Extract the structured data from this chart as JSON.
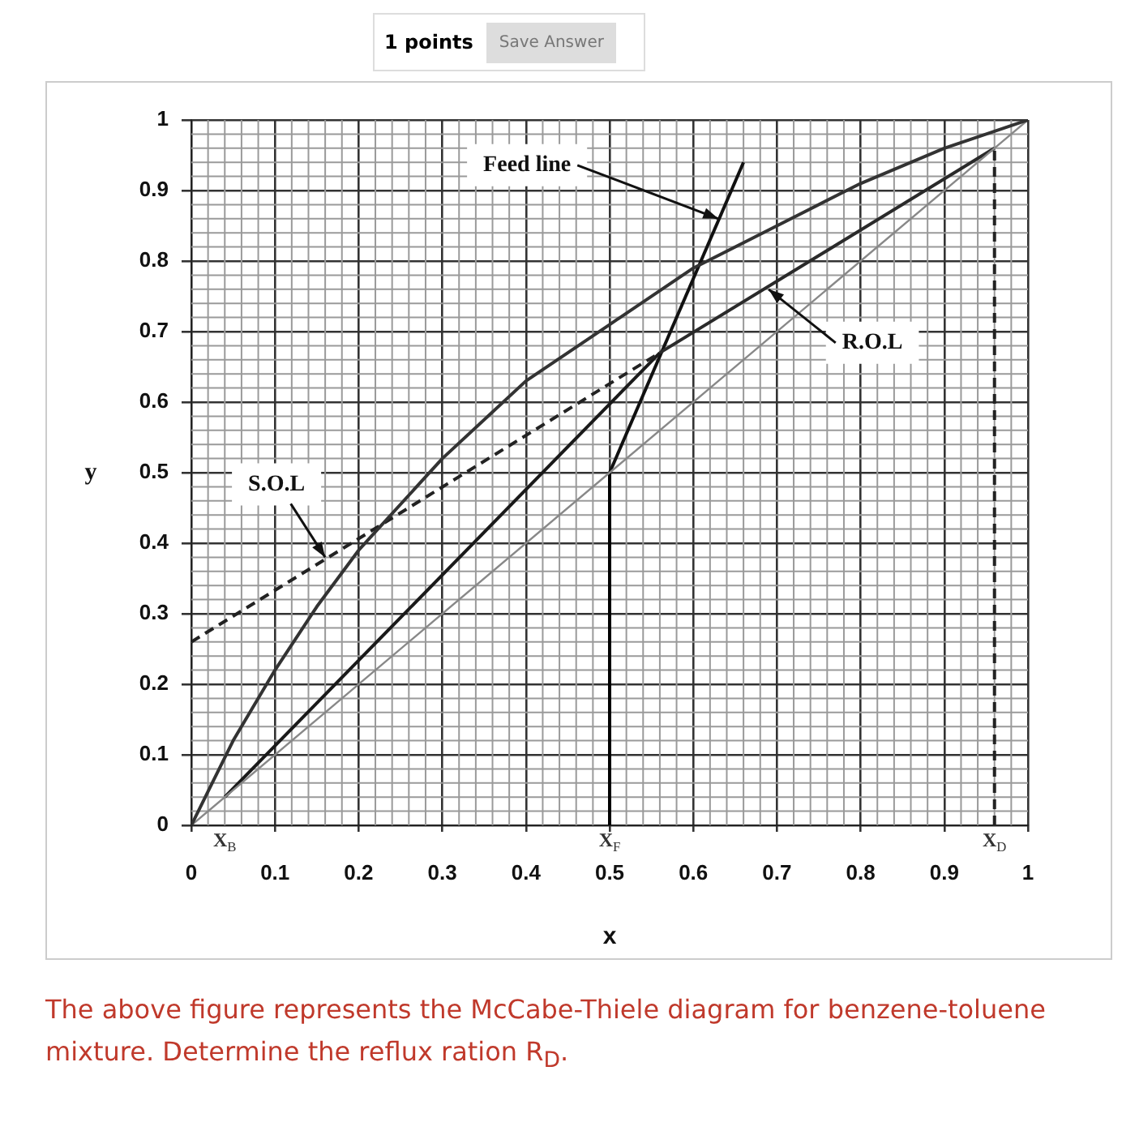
{
  "chart_data": {
    "type": "line",
    "xlabel": "x",
    "ylabel": "y",
    "xlim": [
      0,
      1
    ],
    "ylim": [
      0,
      1
    ],
    "xticks": [
      0,
      0.1,
      0.2,
      0.3,
      0.4,
      0.5,
      0.6,
      0.7,
      0.8,
      0.9,
      1
    ],
    "yticks": [
      0,
      0.1,
      0.2,
      0.3,
      0.4,
      0.5,
      0.6,
      0.7,
      0.8,
      0.9,
      1
    ],
    "grid": true,
    "legend": false,
    "marker": "none",
    "series": [
      {
        "color": "#333333",
        "x": [
          0,
          0.05,
          0.1,
          0.15,
          0.2,
          0.3,
          0.4,
          0.5,
          0.6,
          0.7,
          0.8,
          0.9,
          1
        ],
        "values": [
          0,
          0.12,
          0.22,
          0.31,
          0.39,
          0.52,
          0.63,
          0.71,
          0.79,
          0.85,
          0.91,
          0.96,
          1
        ]
      },
      {
        "color": "#888888",
        "x": [
          0,
          1
        ],
        "values": [
          0,
          1
        ]
      },
      {
        "color": "#2a2a2a",
        "x": [
          0.56,
          0.96
        ],
        "values": [
          0.67,
          0.96
        ]
      },
      {
        "color": "#222222",
        "x": [
          0,
          0.56
        ],
        "values": [
          0.26,
          0.67
        ],
        "line_style": "dashed"
      },
      {
        "color": "#1a1a1a",
        "x": [
          0.04,
          0.56
        ],
        "values": [
          0.04,
          0.67
        ]
      },
      {
        "color": "#111111",
        "x": [
          0.5,
          0.66
        ],
        "values": [
          0.5,
          0.94
        ]
      },
      {
        "color": "#000000",
        "x": [
          0.5,
          0.5
        ],
        "values": [
          0,
          0.5
        ]
      },
      {
        "color": "#222222",
        "x": [
          0.96,
          0.96
        ],
        "values": [
          0,
          0.96
        ],
        "line_style": "dashed"
      }
    ],
    "annotations": [
      "1 points",
      "Save Answer",
      {
        "text": "Feed line",
        "x": 0.63,
        "y": 0.86
      },
      {
        "text": "S.O.L",
        "x": 0.16,
        "y": 0.38
      },
      {
        "text": "R.O.L",
        "x": 0.69,
        "y": 0.76
      },
      {
        "text": "X$_{B}$",
        "x": 0.04,
        "y": 0.04
      },
      {
        "text": "X$_{F}$",
        "x": 0.5,
        "y": 0
      },
      {
        "text": "X$_{D}$",
        "x": 0.96,
        "y": 0
      },
      "The above figure represents the McCabe-Thiele diagram for benzene-toluene mixture. Determine the reflux ration R$_{D}$."
    ]
  }
}
